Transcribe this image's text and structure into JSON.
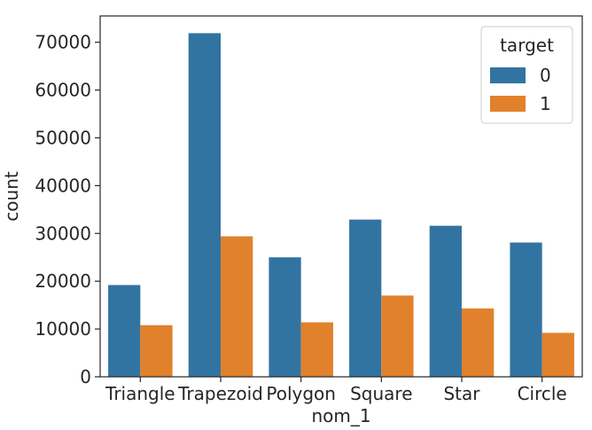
{
  "chart_data": {
    "type": "bar",
    "title": "",
    "xlabel": "nom_1",
    "ylabel": "count",
    "categories": [
      "Triangle",
      "Trapezoid",
      "Polygon",
      "Square",
      "Star",
      "Circle"
    ],
    "series": [
      {
        "name": "0",
        "color": "#3274a1",
        "values": [
          19200,
          71900,
          25000,
          32900,
          31600,
          28100
        ]
      },
      {
        "name": "1",
        "color": "#e1812c",
        "values": [
          10800,
          29400,
          11400,
          17000,
          14300,
          9200
        ]
      }
    ],
    "ylim": [
      0,
      75500
    ],
    "yticks": [
      0,
      10000,
      20000,
      30000,
      40000,
      50000,
      60000,
      70000
    ],
    "legend": {
      "title": "target",
      "position": "top-right"
    },
    "grid": false
  }
}
